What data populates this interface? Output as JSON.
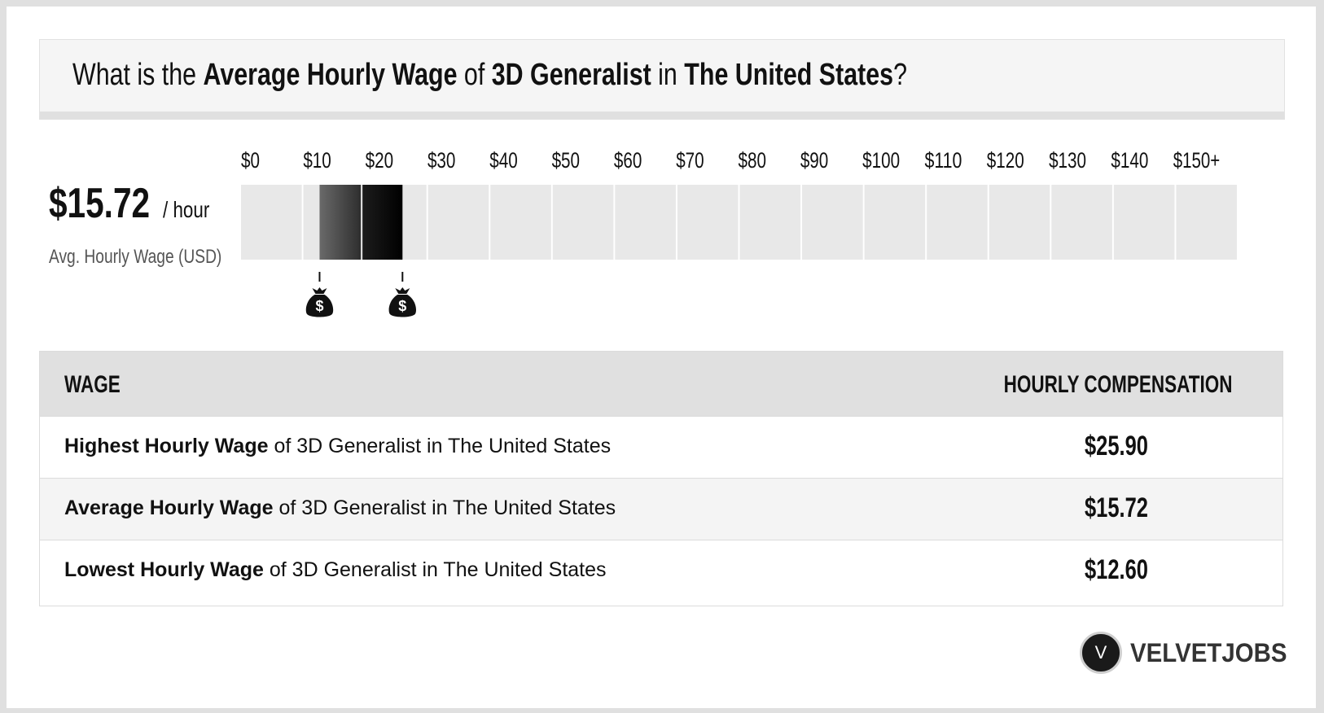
{
  "question": {
    "prefix": "What is the ",
    "metric": "Average Hourly Wage",
    "mid1": " of ",
    "job": "3D Generalist",
    "mid2": " in ",
    "location": "The United States",
    "suffix": "?"
  },
  "average": {
    "value": "$15.72",
    "unit": "/ hour",
    "label": "Avg. Hourly Wage (USD)"
  },
  "chart_data": {
    "type": "bar",
    "categories": [
      "$0",
      "$10",
      "$20",
      "$30",
      "$40",
      "$50",
      "$60",
      "$70",
      "$80",
      "$90",
      "$100",
      "$110",
      "$120",
      "$130",
      "$140",
      "$150+"
    ],
    "xlim": [
      0,
      150
    ],
    "range": {
      "low": 12.6,
      "average": 15.72,
      "high": 25.9
    },
    "markers": [
      12.6,
      25.9
    ],
    "marker_icon": "money-bag-icon",
    "marker_symbol": "$",
    "colors": {
      "track": "#e8e8e8",
      "fill_dark": "#0a0a0a",
      "fill_mid": "#3a3a3a",
      "fill_light": "#6a6a6a"
    }
  },
  "table": {
    "col_wage": "WAGE",
    "col_comp": "HOURLY COMPENSATION",
    "rows": [
      {
        "bold": "Highest Hourly Wage",
        "rest": " of 3D Generalist in The United States",
        "value": "$25.90"
      },
      {
        "bold": "Average Hourly Wage",
        "rest": " of 3D Generalist in The United States",
        "value": "$15.72"
      },
      {
        "bold": "Lowest Hourly Wage",
        "rest": " of 3D Generalist in The United States",
        "value": "$12.60"
      }
    ]
  },
  "brand": {
    "logo_letter": "V",
    "name": "VELVETJOBS"
  }
}
